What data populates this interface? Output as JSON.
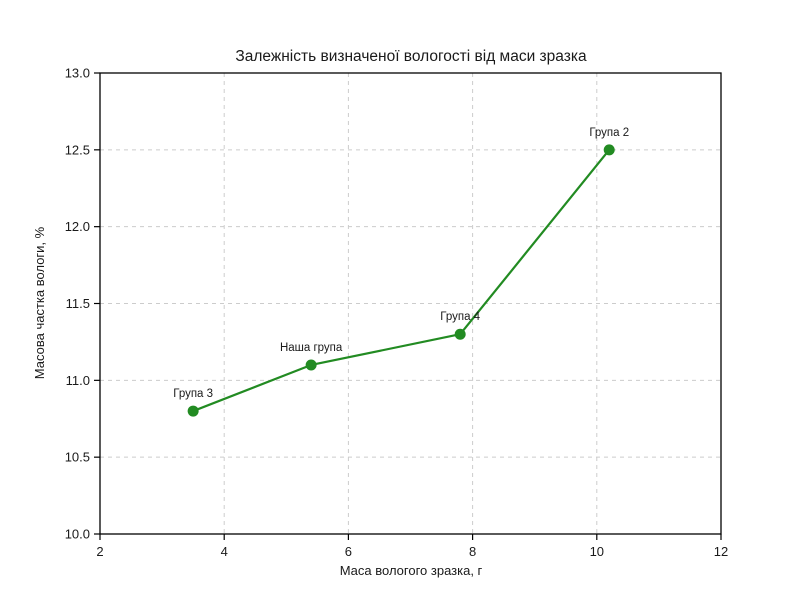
{
  "figure": {
    "background": "#ffffff",
    "plot_background": "#ffffff",
    "spine_color": "#000000",
    "text_color": "#1a1a1a"
  },
  "chart_data": {
    "type": "line",
    "title": "Залежність визначеної вологості від маси зразка",
    "xlabel": "Маса вологого зразка, г",
    "ylabel": "Масова частка вологи, %",
    "xlim": [
      2,
      12
    ],
    "ylim": [
      10.0,
      13.0
    ],
    "xticks": [
      2,
      4,
      6,
      8,
      10,
      12
    ],
    "xtick_labels": [
      "2",
      "4",
      "6",
      "8",
      "10",
      "12"
    ],
    "yticks": [
      10.0,
      10.5,
      11.0,
      11.5,
      12.0,
      12.5,
      13.0
    ],
    "ytick_labels": [
      "10.0",
      "10.5",
      "11.0",
      "11.5",
      "12.0",
      "12.5",
      "13.0"
    ],
    "grid": true,
    "grid_style": "dashed",
    "grid_color": "#cccccc",
    "legend_position": "none",
    "line_color": "#228B22",
    "marker": "circle",
    "points": [
      {
        "x": 3.5,
        "y": 10.8,
        "label": "Група 3"
      },
      {
        "x": 5.4,
        "y": 11.1,
        "label": "Наша група"
      },
      {
        "x": 7.8,
        "y": 11.3,
        "label": "Група 4"
      },
      {
        "x": 10.2,
        "y": 12.5,
        "label": "Група 2"
      }
    ]
  }
}
